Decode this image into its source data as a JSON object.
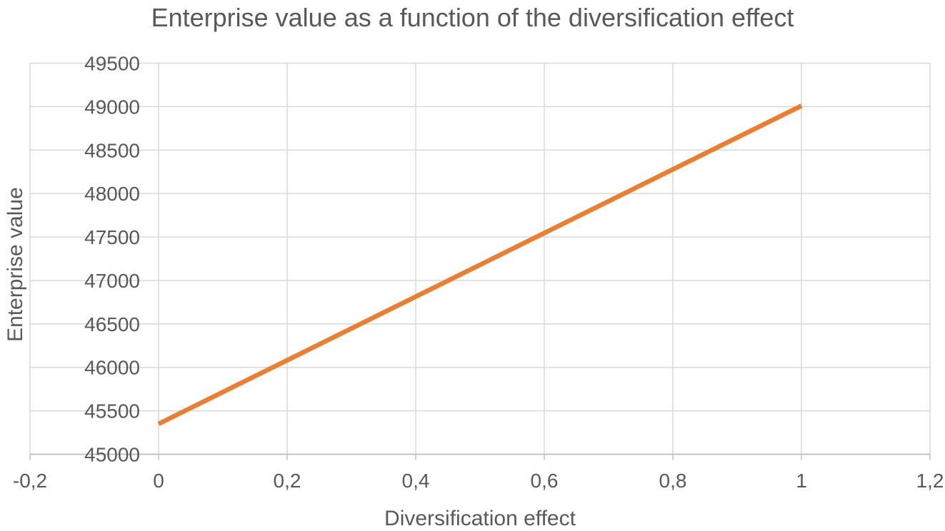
{
  "chart_data": {
    "type": "line",
    "title": "Enterprise value as a function of the diversification effect",
    "xlabel": "Diversification effect",
    "ylabel": "Enterprise value",
    "xlim": [
      -0.2,
      1.2
    ],
    "ylim": [
      45000,
      49500
    ],
    "grid": true,
    "legend": "none",
    "decimal_separator": ",",
    "x_ticks": [
      {
        "v": -0.2,
        "label": "-0,2"
      },
      {
        "v": 0,
        "label": "0"
      },
      {
        "v": 0.2,
        "label": "0,2"
      },
      {
        "v": 0.4,
        "label": "0,4"
      },
      {
        "v": 0.6,
        "label": "0,6"
      },
      {
        "v": 0.8,
        "label": "0,8"
      },
      {
        "v": 1,
        "label": "1"
      },
      {
        "v": 1.2,
        "label": "1,2"
      }
    ],
    "y_ticks": [
      {
        "v": 45000,
        "label": "45000"
      },
      {
        "v": 45500,
        "label": "45500"
      },
      {
        "v": 46000,
        "label": "46000"
      },
      {
        "v": 46500,
        "label": "46500"
      },
      {
        "v": 47000,
        "label": "47000"
      },
      {
        "v": 47500,
        "label": "47500"
      },
      {
        "v": 48000,
        "label": "48000"
      },
      {
        "v": 48500,
        "label": "48500"
      },
      {
        "v": 49000,
        "label": "49000"
      },
      {
        "v": 49500,
        "label": "49500"
      }
    ],
    "series": [
      {
        "name": "Enterprise value",
        "type": "line",
        "color": "#ED7D31",
        "stroke_width": 6.5,
        "points": [
          {
            "x": 0,
            "y": 45350
          },
          {
            "x": 1,
            "y": 49010
          }
        ]
      }
    ],
    "colors": {
      "text": "#595959",
      "gridline": "#D9D9D9",
      "axis": "#BFBFBF",
      "background": "#FFFFFF",
      "series": "#ED7D31"
    }
  }
}
